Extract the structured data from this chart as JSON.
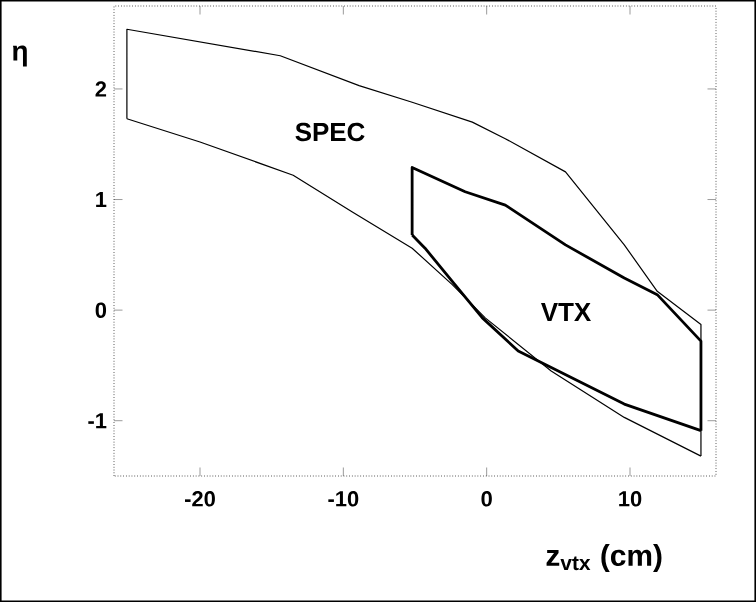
{
  "chart_data": {
    "type": "line",
    "xlabel": "z$_{vtx}$ (cm)",
    "ylabel": "η",
    "xlim": [
      -26,
      16
    ],
    "ylim": [
      -1.5,
      2.75
    ],
    "xticks": [
      -20,
      -10,
      0,
      10
    ],
    "yticks": [
      -1,
      0,
      1,
      2
    ],
    "grid": false,
    "series": [
      {
        "color": "#000000",
        "x": [
          -25.1,
          -25.1,
          -14.4,
          -8.9,
          -5.2,
          -1.0,
          1.3,
          5.5,
          9.6,
          11.9,
          14.95,
          14.95
        ],
        "values": [
          1.73,
          2.54,
          2.3,
          2.03,
          1.88,
          1.7,
          1.55,
          1.25,
          0.59,
          0.17,
          -0.13,
          -1.32
        ]
      },
      {
        "color": "#000000",
        "x": [
          -25.1,
          -20,
          -13.5,
          -9.4,
          -5.2,
          -2.4,
          -0.1,
          4.5,
          9.6,
          14.95
        ],
        "values": [
          1.73,
          1.52,
          1.22,
          0.89,
          0.56,
          0.23,
          -0.07,
          -0.55,
          -0.97,
          -1.32
        ]
      },
      {
        "color": "#000000",
        "x": [
          -5.2,
          -5.2,
          -1.5,
          1.3,
          5.5,
          9.6,
          11.9,
          14.95,
          14.95
        ],
        "values": [
          0.68,
          1.29,
          1.07,
          0.95,
          0.59,
          0.29,
          0.14,
          -0.28,
          -1.09
        ]
      },
      {
        "color": "#000000",
        "x": [
          -5.2,
          -4.3,
          -2.4,
          -0.3,
          2.2,
          5.9,
          9.6,
          14.95
        ],
        "values": [
          0.68,
          0.56,
          0.26,
          -0.07,
          -0.37,
          -0.61,
          -0.85,
          -1.09
        ]
      }
    ],
    "annotations": [
      "SPEC",
      "VTX"
    ]
  }
}
